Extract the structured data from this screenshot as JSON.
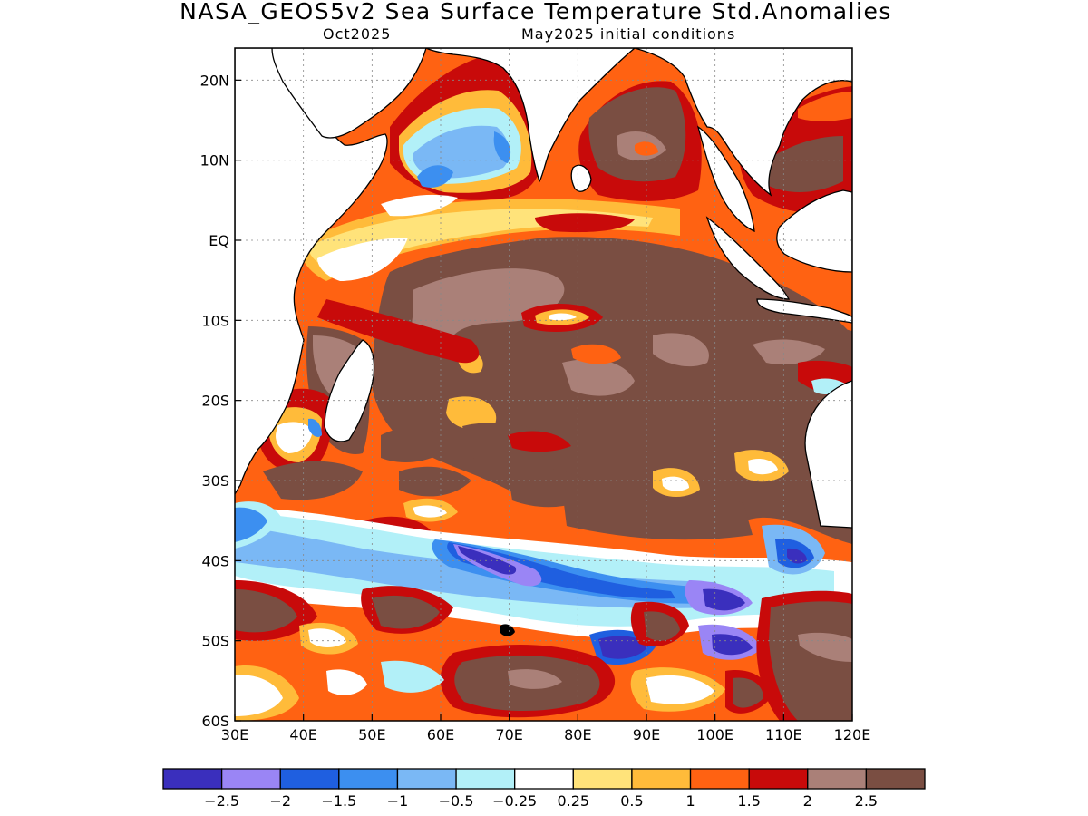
{
  "title": "NASA_GEOS5v2 Sea Surface Temperature Std.Anomalies",
  "subtitle_month": "Oct2025",
  "subtitle_init": "May2025 initial conditions",
  "map": {
    "lon_range": [
      30,
      120
    ],
    "lat_range": [
      -60,
      24
    ],
    "lon_ticks": [
      {
        "value": 30,
        "label": "30E"
      },
      {
        "value": 40,
        "label": "40E"
      },
      {
        "value": 50,
        "label": "50E"
      },
      {
        "value": 60,
        "label": "60E"
      },
      {
        "value": 70,
        "label": "70E"
      },
      {
        "value": 80,
        "label": "80E"
      },
      {
        "value": 90,
        "label": "90E"
      },
      {
        "value": 100,
        "label": "100E"
      },
      {
        "value": 110,
        "label": "110E"
      },
      {
        "value": 120,
        "label": "120E"
      }
    ],
    "lat_ticks": [
      {
        "value": 20,
        "label": "20N"
      },
      {
        "value": 10,
        "label": "10N"
      },
      {
        "value": 0,
        "label": "EQ"
      },
      {
        "value": -10,
        "label": "10S"
      },
      {
        "value": -20,
        "label": "20S"
      },
      {
        "value": -30,
        "label": "30S"
      },
      {
        "value": -40,
        "label": "40S"
      },
      {
        "value": -50,
        "label": "50S"
      },
      {
        "value": -60,
        "label": "60S"
      }
    ],
    "grid": true
  },
  "colorbar": {
    "colors": [
      "#3a2fbd",
      "#9a85f5",
      "#1f5fe0",
      "#3c8ff0",
      "#7ab8f5",
      "#b2f0f8",
      "#ffffff",
      "#ffe37a",
      "#ffbb3a",
      "#ff6212",
      "#c80a0a",
      "#aa8078",
      "#7a4e42"
    ],
    "labels": [
      "−2.5",
      "−2",
      "−1.5",
      "−1",
      "−0.5",
      "−0.25",
      "0.25",
      "0.5",
      "1",
      "1.5",
      "2",
      "2.5"
    ]
  },
  "legend_colors": {
    "land": "#ffffff",
    "coast": "#000000"
  }
}
